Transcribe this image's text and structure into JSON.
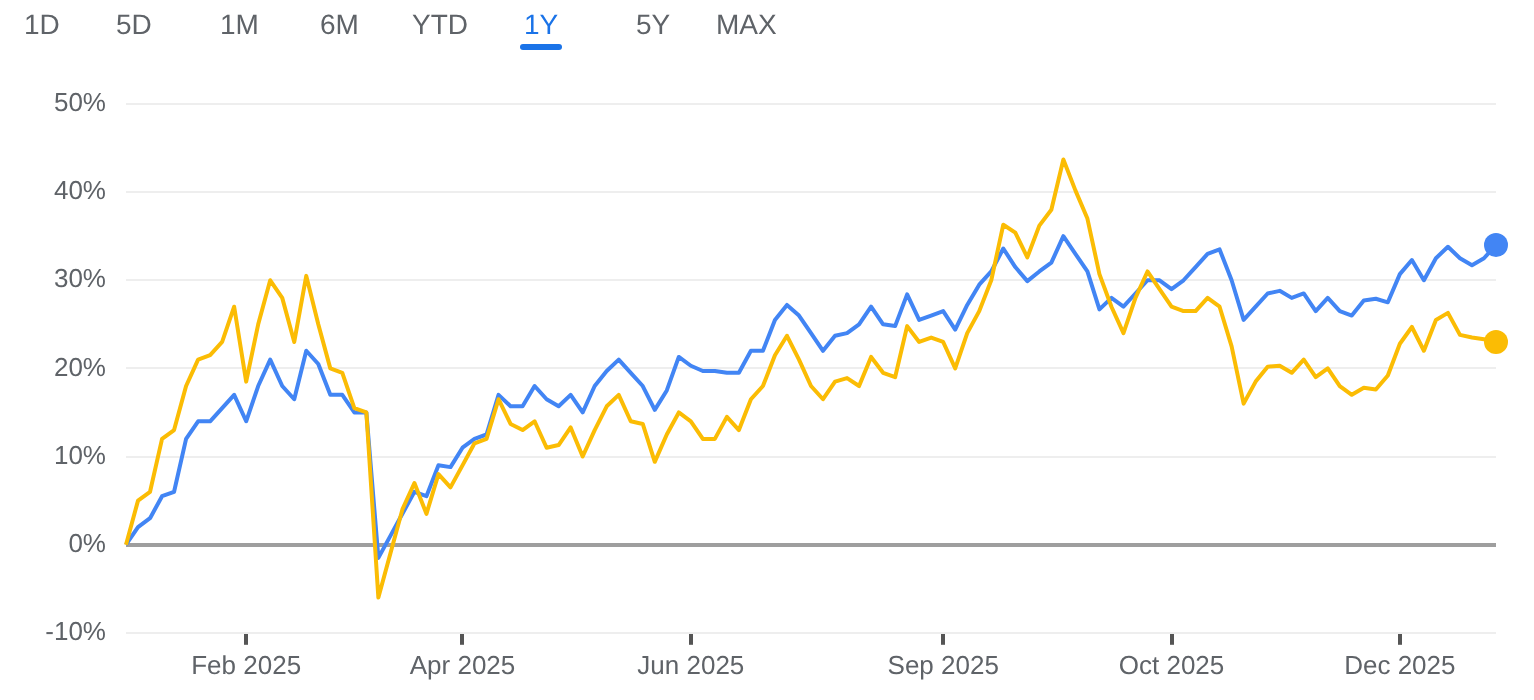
{
  "chart_data": {
    "type": "line",
    "categories": [
      null,
      null,
      null,
      null,
      null,
      null,
      null,
      null,
      null,
      null,
      "Feb 2025",
      null,
      null,
      null,
      null,
      null,
      null,
      null,
      null,
      null,
      null,
      null,
      null,
      null,
      null,
      null,
      null,
      null,
      "Apr 2025",
      null,
      null,
      null,
      null,
      null,
      null,
      null,
      null,
      null,
      null,
      null,
      null,
      null,
      null,
      null,
      null,
      null,
      null,
      "Jun 2025",
      null,
      null,
      null,
      null,
      null,
      null,
      null,
      null,
      null,
      null,
      null,
      null,
      null,
      null,
      null,
      null,
      null,
      null,
      null,
      null,
      "Sep 2025",
      null,
      null,
      null,
      null,
      null,
      null,
      null,
      null,
      null,
      null,
      null,
      null,
      null,
      null,
      null,
      null,
      null,
      null,
      "Oct 2025",
      null,
      null,
      null,
      null,
      null,
      null,
      null,
      null,
      null,
      null,
      null,
      null,
      null,
      null,
      null,
      null,
      null,
      null,
      "Dec 2025",
      null,
      null,
      null,
      null,
      null,
      null,
      null,
      null
    ],
    "series": [
      {
        "color": "#fbbc04",
        "values": [
          0,
          5,
          6,
          12,
          13,
          18,
          21,
          21.5,
          23,
          27,
          18.5,
          25,
          30,
          28,
          23,
          30.5,
          25,
          20,
          19.5,
          15.5,
          15,
          -6,
          -1,
          4,
          7,
          3.5,
          8,
          6.5,
          9,
          11.5,
          12,
          16.5,
          13.7,
          13,
          14,
          11,
          11.3,
          13.3,
          10,
          13,
          15.7,
          17,
          14,
          13.7,
          9.4,
          12.5,
          15,
          14,
          12,
          12,
          14.5,
          13,
          16.5,
          18,
          21.5,
          23.7,
          21,
          18,
          16.5,
          18.5,
          18.9,
          18,
          21.3,
          19.5,
          19,
          24.8,
          23,
          23.5,
          23,
          20,
          24,
          26.5,
          30,
          36.3,
          35.4,
          32.6,
          36.2,
          38,
          43.7,
          40.2,
          37,
          30.7,
          27,
          24,
          28,
          31,
          29,
          27,
          26.5,
          26.5,
          28,
          27,
          22.5,
          16,
          18.5,
          20.2,
          20.3,
          19.5,
          21,
          19,
          20,
          18,
          17,
          17.8,
          17.6,
          19.2,
          22.8,
          24.7,
          22,
          25.5,
          26.3,
          23.8,
          23.5,
          23.3,
          23
        ]
      },
      {
        "color": "#4285f4",
        "values": [
          0,
          2,
          3,
          5.5,
          6,
          12,
          14,
          14,
          15.5,
          17,
          14,
          18,
          21,
          18,
          16.5,
          22,
          20.5,
          17,
          17,
          15,
          15,
          -1.5,
          1,
          3.5,
          6,
          5.5,
          9,
          8.8,
          11,
          12,
          12.5,
          17,
          15.7,
          15.7,
          18,
          16.5,
          15.7,
          17,
          15,
          18,
          19.7,
          21,
          19.5,
          18,
          15.3,
          17.5,
          21.3,
          20.3,
          19.7,
          19.7,
          19.5,
          19.5,
          22,
          22,
          25.5,
          27.2,
          26,
          24,
          22,
          23.7,
          24,
          25,
          27,
          25,
          24.8,
          28.4,
          25.5,
          26,
          26.5,
          24.4,
          27.2,
          29.5,
          31,
          33.6,
          31.5,
          29.9,
          31,
          32,
          35,
          33,
          31,
          26.7,
          28,
          27,
          28.5,
          30,
          30,
          29,
          30,
          31.5,
          33,
          33.5,
          30,
          25.5,
          27,
          28.5,
          28.8,
          28,
          28.5,
          26.5,
          28,
          26.5,
          26,
          27.7,
          27.9,
          27.5,
          30.7,
          32.3,
          30,
          32.5,
          33.8,
          32.5,
          31.7,
          32.5,
          34
        ]
      }
    ],
    "ylim": [
      -10,
      50
    ],
    "yticks": [
      {
        "value": -10,
        "label": "-10%"
      },
      {
        "value": 0,
        "label": "0%"
      },
      {
        "value": 10,
        "label": "10%"
      },
      {
        "value": 20,
        "label": "20%"
      },
      {
        "value": 30,
        "label": "30%"
      },
      {
        "value": 40,
        "label": "40%"
      },
      {
        "value": 50,
        "label": "50%"
      }
    ],
    "grid": "y",
    "annotations": [
      "1D",
      "5D",
      "1M",
      "6M",
      "YTD",
      "1Y",
      "5Y",
      "MAX"
    ]
  }
}
